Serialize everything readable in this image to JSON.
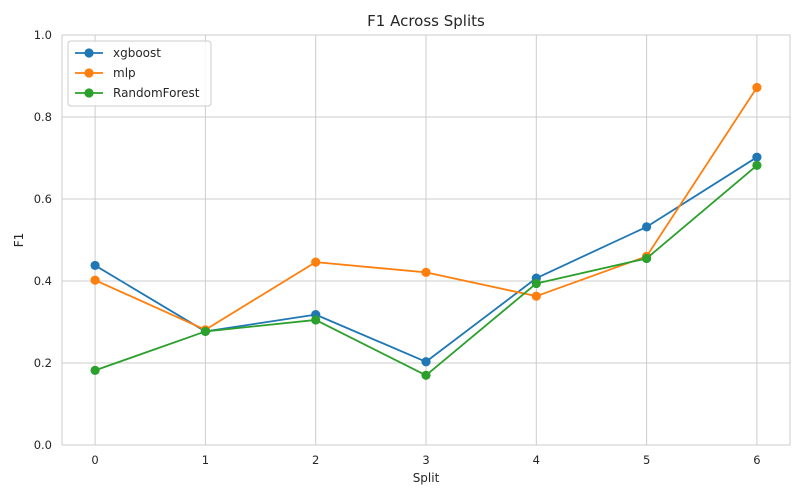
{
  "chart_data": {
    "type": "line",
    "title": "F1 Across Splits",
    "xlabel": "Split",
    "ylabel": "F1",
    "x": [
      0,
      1,
      2,
      3,
      4,
      5,
      6
    ],
    "xlim": [
      -0.3,
      6.3
    ],
    "ylim": [
      0.0,
      1.0
    ],
    "yticks": [
      0.0,
      0.2,
      0.4,
      0.6,
      0.8,
      1.0
    ],
    "ytick_labels": [
      "0.0",
      "0.2",
      "0.4",
      "0.6",
      "0.8",
      "1.0"
    ],
    "xtick_labels": [
      "0",
      "1",
      "2",
      "3",
      "4",
      "5",
      "6"
    ],
    "grid": true,
    "legend_position": "top-left",
    "series": [
      {
        "name": "xgboost",
        "color": "#1f77b4",
        "values": [
          0.438,
          0.277,
          0.318,
          0.203,
          0.407,
          0.532,
          0.702
        ]
      },
      {
        "name": "mlp",
        "color": "#ff7f0e",
        "values": [
          0.402,
          0.281,
          0.446,
          0.421,
          0.363,
          0.46,
          0.872
        ]
      },
      {
        "name": "RandomForest",
        "color": "#2ca02c",
        "values": [
          0.182,
          0.277,
          0.305,
          0.17,
          0.394,
          0.455,
          0.682
        ]
      }
    ]
  }
}
